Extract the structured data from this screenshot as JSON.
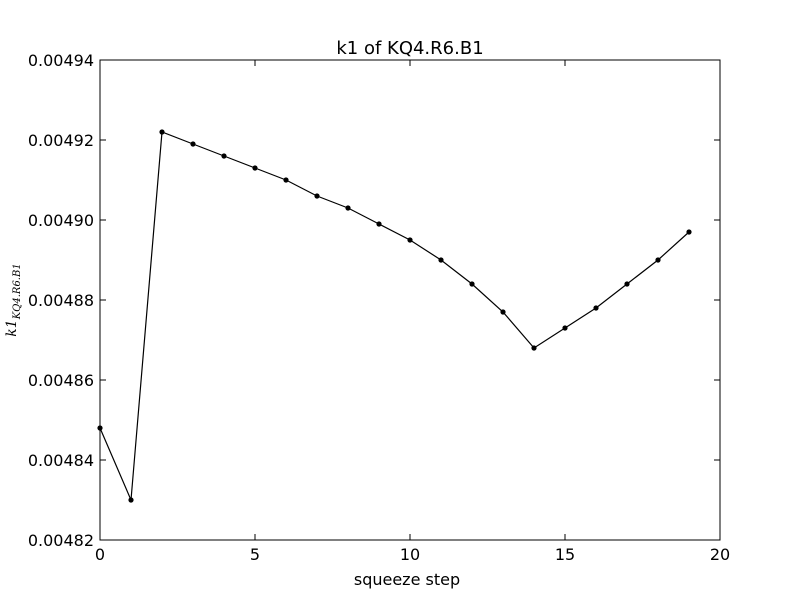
{
  "chart_data": {
    "type": "line",
    "title": "k1 of KQ4.R6.B1",
    "xlabel": "squeeze step",
    "ylabel": "k1",
    "ylabel_subscript": "KQ4.R6.B1",
    "xlim": [
      0,
      20
    ],
    "ylim": [
      0.00482,
      0.00494
    ],
    "x_ticks": [
      0,
      5,
      10,
      15,
      20
    ],
    "y_ticks": [
      0.00482,
      0.00484,
      0.00486,
      0.00488,
      0.0049,
      0.00492,
      0.00494
    ],
    "x_tick_labels": [
      "0",
      "5",
      "10",
      "15",
      "20"
    ],
    "y_tick_labels": [
      "0.00482",
      "0.00484",
      "0.00486",
      "0.00488",
      "0.00490",
      "0.00492",
      "0.00494"
    ],
    "grid": false,
    "line_color": "#000000",
    "marker": "dot",
    "x": [
      0,
      1,
      2,
      3,
      4,
      5,
      6,
      7,
      8,
      9,
      10,
      11,
      12,
      13,
      14,
      15,
      16,
      17,
      18,
      19
    ],
    "y": [
      0.004848,
      0.00483,
      0.004922,
      0.004919,
      0.004916,
      0.004913,
      0.00491,
      0.004906,
      0.004903,
      0.004899,
      0.004895,
      0.00489,
      0.004884,
      0.004877,
      0.004868,
      0.004873,
      0.004878,
      0.004884,
      0.00489,
      0.004897
    ]
  }
}
